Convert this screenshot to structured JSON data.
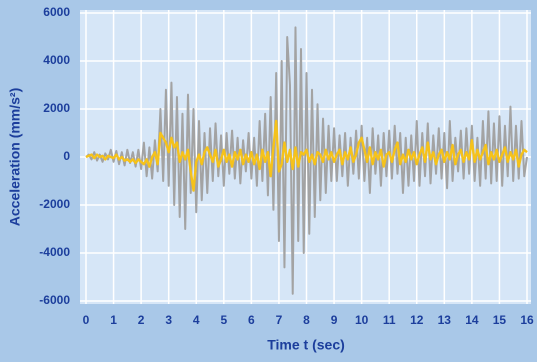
{
  "chart_data": {
    "type": "line",
    "x_label": "Time t (sec)",
    "y_label": "Acceleration (mm/s²)",
    "xlim": [
      0,
      16
    ],
    "ylim": [
      -6000,
      6000
    ],
    "xticks": [
      0,
      1,
      2,
      3,
      4,
      5,
      6,
      7,
      8,
      9,
      10,
      11,
      12,
      13,
      14,
      15,
      16
    ],
    "yticks": [
      -6000,
      -4000,
      -2000,
      0,
      2000,
      4000,
      6000
    ],
    "grid": true,
    "x": [
      0,
      0.1,
      0.2,
      0.3,
      0.4,
      0.5,
      0.6,
      0.7,
      0.8,
      0.9,
      1,
      1.1,
      1.2,
      1.3,
      1.4,
      1.5,
      1.6,
      1.7,
      1.8,
      1.9,
      2,
      2.1,
      2.2,
      2.3,
      2.4,
      2.5,
      2.6,
      2.7,
      2.8,
      2.9,
      3,
      3.1,
      3.2,
      3.3,
      3.4,
      3.5,
      3.6,
      3.7,
      3.8,
      3.9,
      4,
      4.1,
      4.2,
      4.3,
      4.4,
      4.5,
      4.6,
      4.7,
      4.8,
      4.9,
      5,
      5.1,
      5.2,
      5.3,
      5.4,
      5.5,
      5.6,
      5.7,
      5.8,
      5.9,
      6,
      6.1,
      6.2,
      6.3,
      6.4,
      6.5,
      6.6,
      6.7,
      6.8,
      6.9,
      7,
      7.1,
      7.2,
      7.3,
      7.4,
      7.5,
      7.6,
      7.7,
      7.8,
      7.9,
      8,
      8.1,
      8.2,
      8.3,
      8.4,
      8.5,
      8.6,
      8.7,
      8.8,
      8.9,
      9,
      9.1,
      9.2,
      9.3,
      9.4,
      9.5,
      9.6,
      9.7,
      9.8,
      9.9,
      10,
      10.1,
      10.2,
      10.3,
      10.4,
      10.5,
      10.6,
      10.7,
      10.8,
      10.9,
      11,
      11.1,
      11.2,
      11.3,
      11.4,
      11.5,
      11.6,
      11.7,
      11.8,
      11.9,
      12,
      12.1,
      12.2,
      12.3,
      12.4,
      12.5,
      12.6,
      12.7,
      12.8,
      12.9,
      13,
      13.1,
      13.2,
      13.3,
      13.4,
      13.5,
      13.6,
      13.7,
      13.8,
      13.9,
      14,
      14.1,
      14.2,
      14.3,
      14.4,
      14.5,
      14.6,
      14.7,
      14.8,
      14.9,
      15,
      15.1,
      15.2,
      15.3,
      15.4,
      15.5,
      15.6,
      15.7,
      15.8,
      15.9,
      16
    ],
    "series": [
      {
        "color": "#a3a3a3",
        "values": [
          0,
          100,
          -100,
          200,
          -150,
          100,
          -200,
          150,
          -100,
          300,
          -200,
          250,
          -300,
          200,
          -350,
          300,
          -250,
          200,
          -400,
          300,
          -500,
          600,
          -800,
          400,
          -900,
          700,
          -600,
          2000,
          -1000,
          2800,
          -1200,
          3100,
          -2000,
          2500,
          -2500,
          1800,
          -3000,
          2600,
          -1500,
          2000,
          -2300,
          1500,
          -1800,
          1000,
          -1500,
          1200,
          -1000,
          1400,
          -800,
          900,
          -1200,
          1000,
          -700,
          1100,
          -900,
          800,
          -1100,
          700,
          -600,
          1000,
          -900,
          800,
          -1200,
          1500,
          -1000,
          1800,
          -1600,
          2500,
          -2200,
          3500,
          -3500,
          4000,
          -4600,
          5000,
          3000,
          -5700,
          5400,
          -3500,
          4500,
          -4000,
          3500,
          -3200,
          2800,
          -2500,
          2200,
          -1800,
          1600,
          -1500,
          1300,
          -1000,
          1200,
          -1000,
          900,
          -800,
          1000,
          -1200,
          800,
          -700,
          1100,
          -900,
          1300,
          -1000,
          800,
          -1500,
          1200,
          -700,
          900,
          -1200,
          1000,
          -800,
          1100,
          -900,
          1300,
          -700,
          1000,
          -1500,
          800,
          -1200,
          900,
          -1000,
          1500,
          -1200,
          1000,
          -800,
          1400,
          -1100,
          900,
          -700,
          1200,
          -900,
          1000,
          -1300,
          1500,
          -1000,
          800,
          -600,
          1100,
          -900,
          1200,
          -700,
          1300,
          -1000,
          800,
          -1200,
          1500,
          -900,
          1900,
          -1100,
          1400,
          -1000,
          1700,
          -1200,
          1300,
          -800,
          2100,
          -1000,
          1300,
          -900,
          1500,
          -800,
          0
        ]
      },
      {
        "color": "#f5c21b",
        "values": [
          0,
          50,
          100,
          -50,
          100,
          0,
          50,
          -100,
          50,
          0,
          -50,
          100,
          -100,
          0,
          -150,
          -100,
          -200,
          -100,
          -250,
          -100,
          -200,
          -300,
          -100,
          -400,
          0,
          200,
          -300,
          1000,
          800,
          600,
          200,
          800,
          400,
          600,
          -200,
          200,
          -100,
          300,
          -600,
          -1400,
          -200,
          100,
          -300,
          200,
          400,
          100,
          -200,
          300,
          -400,
          -100,
          300,
          -200,
          100,
          -400,
          200,
          -100,
          300,
          -300,
          100,
          -200,
          200,
          -300,
          100,
          -500,
          300,
          -200,
          200,
          -800,
          400,
          1500,
          -600,
          -300,
          600,
          -200,
          300,
          -500,
          400,
          -400,
          200,
          100,
          300,
          -200,
          100,
          -300,
          200,
          100,
          -200,
          300,
          -100,
          200,
          -200,
          100,
          300,
          -300,
          200,
          -100,
          400,
          -200,
          100,
          600,
          800,
          300,
          -200,
          400,
          -300,
          200,
          -100,
          300,
          -400,
          100,
          200,
          -200,
          300,
          600,
          -300,
          100,
          -200,
          300,
          -100,
          200,
          -300,
          100,
          400,
          -200,
          600,
          -100,
          200,
          -300,
          100,
          300,
          -200,
          200,
          -100,
          500,
          -300,
          100,
          300,
          -200,
          200,
          -100,
          700,
          -200,
          300,
          -100,
          200,
          500,
          -300,
          200,
          -100,
          300,
          -200,
          100,
          400,
          -200,
          200,
          -100,
          300,
          -400,
          100,
          300,
          200
        ]
      }
    ]
  }
}
